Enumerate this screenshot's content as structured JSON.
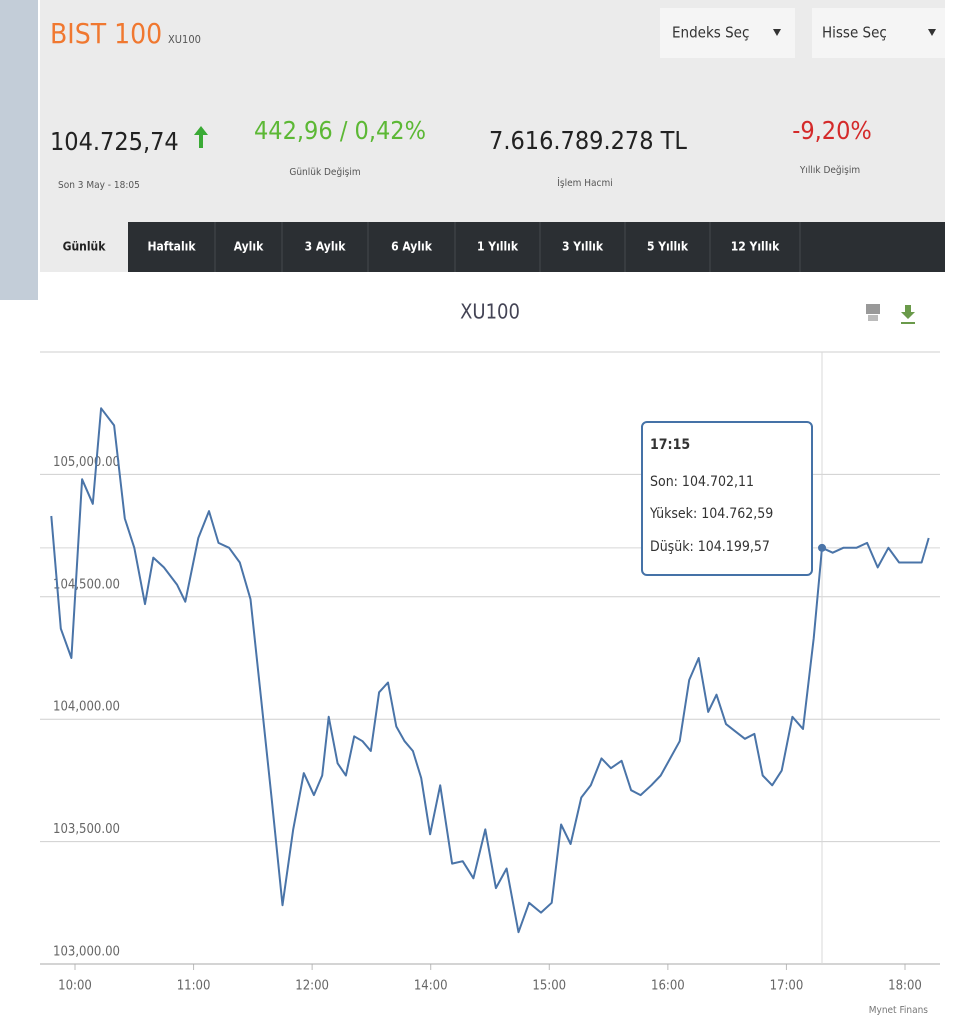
{
  "header": {
    "title": "BIST 100",
    "code": "XU100",
    "index_select": "Endeks Seç",
    "stock_select": "Hisse Seç",
    "last": "104.725,74",
    "last_time": "Son 3 May - 18:05",
    "change": "442,96 / 0,42%",
    "change_label": "Günlük Değişim",
    "volume": "7.616.789.278 TL",
    "volume_label": "İşlem Hacmi",
    "yearly": "-9,20%",
    "yearly_label": "Yıllık Değişim"
  },
  "tabs": [
    "Günlük",
    "Haftalık",
    "Aylık",
    "3 Aylık",
    "6 Aylık",
    "1 Yıllık",
    "3 Yıllık",
    "5 Yıllık",
    "12 Yıllık"
  ],
  "chart_data": {
    "type": "line",
    "title": "XU100",
    "color": "#4a74a8",
    "x": [
      9.8,
      9.88,
      9.97,
      10.06,
      10.15,
      10.22,
      10.33,
      10.42,
      10.5,
      10.59,
      10.66,
      10.75,
      10.86,
      10.93,
      11.04,
      11.13,
      11.21,
      11.3,
      11.39,
      11.48,
      11.57,
      11.66,
      11.75,
      11.84,
      11.93,
      12.03,
      12.17,
      12.28,
      12.43,
      12.57,
      12.71,
      12.85,
      12.99,
      13.13,
      13.28,
      13.42,
      13.56,
      13.7,
      13.84,
      13.99,
      14.08,
      14.18,
      14.27,
      14.36,
      14.46,
      14.55,
      14.64,
      14.74,
      14.83,
      14.93,
      15.02,
      15.1,
      15.18,
      15.27,
      15.35,
      15.44,
      15.52,
      15.61,
      15.69,
      15.77,
      15.86,
      15.94,
      16.02,
      16.1,
      16.18,
      16.26,
      16.34,
      16.41,
      16.49,
      16.57,
      16.65,
      16.73,
      16.8,
      16.88,
      16.96,
      17.05,
      17.14,
      17.23,
      17.3,
      17.39,
      17.48,
      17.59,
      17.68,
      17.77,
      17.86,
      17.95,
      18.05,
      18.14,
      18.2
    ],
    "values": [
      104830,
      104370,
      104250,
      104980,
      104880,
      105270,
      105200,
      104820,
      104700,
      104470,
      104660,
      104620,
      104550,
      104480,
      104740,
      104850,
      104720,
      104700,
      104640,
      104490,
      104080,
      103670,
      103240,
      103550,
      103780,
      103690,
      103770,
      104010,
      103820,
      103770,
      103930,
      103910,
      103870,
      104110,
      104150,
      103970,
      103910,
      103870,
      103760,
      103530,
      103730,
      103410,
      103420,
      103350,
      103550,
      103310,
      103390,
      103130,
      103250,
      103210,
      103250,
      103570,
      103490,
      103680,
      103730,
      103840,
      103800,
      103830,
      103710,
      103690,
      103730,
      103770,
      103840,
      103910,
      104160,
      104250,
      104030,
      104100,
      103980,
      103950,
      103920,
      103940,
      103770,
      103730,
      103790,
      104010,
      103960,
      104330,
      104700,
      104680,
      104700,
      104700,
      104720,
      104620,
      104700,
      104640,
      104640,
      104640,
      104740
    ],
    "xlim": [
      9.8,
      18.2
    ],
    "xticks": [
      {
        "value": 10,
        "label": "10:00"
      },
      {
        "value": 11,
        "label": "11:00"
      },
      {
        "value": 12,
        "label": "12:00"
      },
      {
        "value": 14,
        "label": "14:00"
      },
      {
        "value": 15,
        "label": "15:00"
      },
      {
        "value": 16,
        "label": "16:00"
      },
      {
        "value": 17,
        "label": "17:00"
      },
      {
        "value": 18,
        "label": "18:00"
      }
    ],
    "ylim": [
      103000,
      105500
    ],
    "yticks": [
      {
        "value": 103000,
        "label": "103,000.00"
      },
      {
        "value": 103500,
        "label": "103,500.00"
      },
      {
        "value": 104000,
        "label": "104,000.00"
      },
      {
        "value": 104500,
        "label": "104,500.00"
      },
      {
        "value": 105000,
        "label": "105,000.00"
      }
    ],
    "grid": true,
    "tooltip": {
      "time": "17:15",
      "last": "Son: 104.702,11",
      "high": "Yüksek: 104.762,59",
      "low": "Düşük: 104.199,57"
    },
    "credit": "Mynet Finans"
  }
}
